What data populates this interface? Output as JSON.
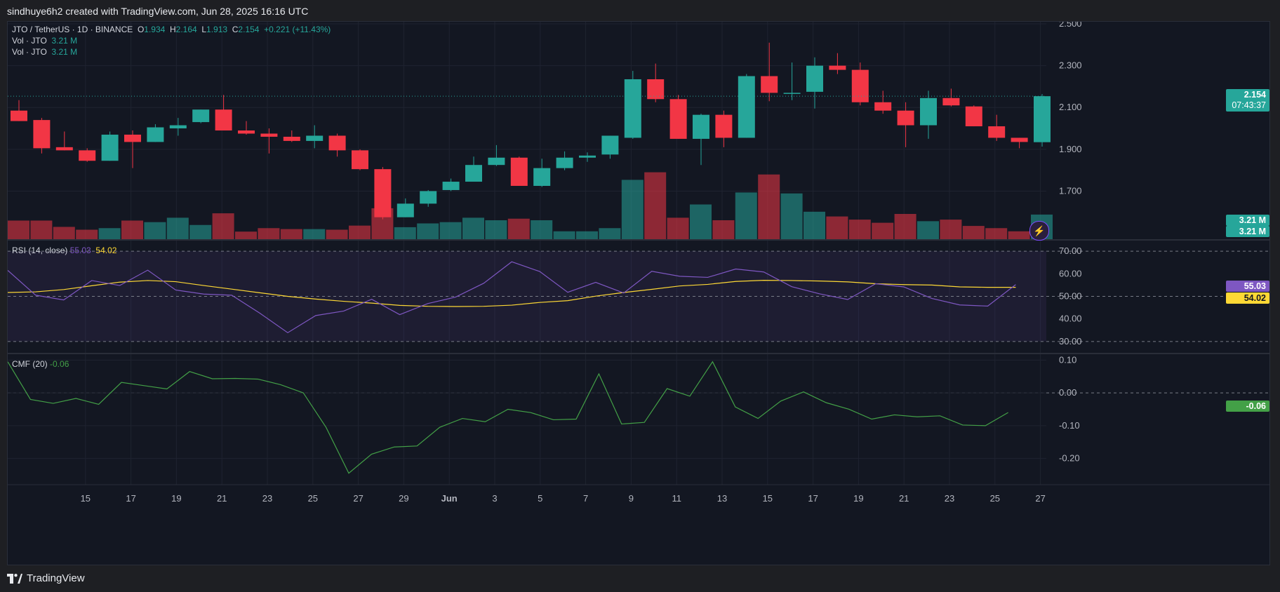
{
  "header": {
    "attribution": "sindhuye6h2 created with TradingView.com, Jun 28, 2025 16:16 UTC"
  },
  "footer": {
    "brand": "TradingView"
  },
  "legend": {
    "symbol": "JTO / TetherUS · 1D · BINANCE",
    "o_label": "O",
    "o": "1.934",
    "h_label": "H",
    "h": "2.164",
    "l_label": "L",
    "l": "1.913",
    "c_label": "C",
    "c": "2.154",
    "change": "+0.221 (+11.43%)",
    "vol1_label": "Vol · JTO",
    "vol1": "3.21 M",
    "vol2_label": "Vol · JTO",
    "vol2": "3.21 M",
    "rsi_label": "RSI (14, close)",
    "rsi": "55.03",
    "rsi_ma": "54.02",
    "cmf_label": "CMF (20)",
    "cmf": "-0.06"
  },
  "price_labels": {
    "last_price": "2.154",
    "countdown": "07:43:37",
    "vol_a": "3.21 M",
    "vol_b": "3.21 M",
    "rsi": "55.03",
    "rsi_ma": "54.02",
    "cmf": "-0.06"
  },
  "colors": {
    "up": "#26a69a",
    "down": "#f23645",
    "rsi": "#7e57c2",
    "rsi_ma": "#fdd835",
    "cmf": "#43a047"
  },
  "chart_data": {
    "type": "candlestick",
    "title": "JTO / TetherUS · 1D · BINANCE",
    "price_axis": {
      "ticks": [
        "2.500",
        "2.300",
        "2.100",
        "1.900",
        "1.700"
      ],
      "range": [
        1.47,
        2.5
      ]
    },
    "x_ticks": [
      "15",
      "17",
      "19",
      "21",
      "23",
      "25",
      "27",
      "29",
      "Jun",
      "3",
      "5",
      "7",
      "9",
      "11",
      "13",
      "15",
      "17",
      "19",
      "21",
      "23",
      "25",
      "27"
    ],
    "candles": [
      {
        "o": 2.085,
        "h": 2.135,
        "l": 2.035,
        "c": 2.035
      },
      {
        "o": 2.04,
        "h": 2.05,
        "l": 1.88,
        "c": 1.905
      },
      {
        "o": 1.91,
        "h": 1.985,
        "l": 1.895,
        "c": 1.895
      },
      {
        "o": 1.895,
        "h": 1.905,
        "l": 1.84,
        "c": 1.845
      },
      {
        "o": 1.845,
        "h": 1.985,
        "l": 1.845,
        "c": 1.97
      },
      {
        "o": 1.97,
        "h": 1.99,
        "l": 1.81,
        "c": 1.935
      },
      {
        "o": 1.935,
        "h": 2.02,
        "l": 1.935,
        "c": 2.005
      },
      {
        "o": 2.0,
        "h": 2.05,
        "l": 1.965,
        "c": 2.015
      },
      {
        "o": 2.03,
        "h": 2.09,
        "l": 2.025,
        "c": 2.09
      },
      {
        "o": 2.09,
        "h": 2.16,
        "l": 1.99,
        "c": 1.99
      },
      {
        "o": 1.99,
        "h": 2.035,
        "l": 1.97,
        "c": 1.975
      },
      {
        "o": 1.975,
        "h": 2.0,
        "l": 1.88,
        "c": 1.96
      },
      {
        "o": 1.96,
        "h": 1.99,
        "l": 1.935,
        "c": 1.94
      },
      {
        "o": 1.94,
        "h": 2.015,
        "l": 1.905,
        "c": 1.965
      },
      {
        "o": 1.965,
        "h": 1.975,
        "l": 1.865,
        "c": 1.895
      },
      {
        "o": 1.895,
        "h": 1.9,
        "l": 1.8,
        "c": 1.805
      },
      {
        "o": 1.805,
        "h": 1.815,
        "l": 1.565,
        "c": 1.575
      },
      {
        "o": 1.575,
        "h": 1.665,
        "l": 1.575,
        "c": 1.64
      },
      {
        "o": 1.64,
        "h": 1.705,
        "l": 1.625,
        "c": 1.7
      },
      {
        "o": 1.705,
        "h": 1.76,
        "l": 1.7,
        "c": 1.745
      },
      {
        "o": 1.745,
        "h": 1.865,
        "l": 1.745,
        "c": 1.825
      },
      {
        "o": 1.825,
        "h": 1.92,
        "l": 1.82,
        "c": 1.86
      },
      {
        "o": 1.86,
        "h": 1.865,
        "l": 1.725,
        "c": 1.725
      },
      {
        "o": 1.725,
        "h": 1.855,
        "l": 1.72,
        "c": 1.81
      },
      {
        "o": 1.81,
        "h": 1.89,
        "l": 1.8,
        "c": 1.86
      },
      {
        "o": 1.86,
        "h": 1.885,
        "l": 1.84,
        "c": 1.87
      },
      {
        "o": 1.875,
        "h": 1.965,
        "l": 1.855,
        "c": 1.965
      },
      {
        "o": 1.955,
        "h": 2.275,
        "l": 1.95,
        "c": 2.235
      },
      {
        "o": 2.235,
        "h": 2.31,
        "l": 2.125,
        "c": 2.14
      },
      {
        "o": 2.14,
        "h": 2.16,
        "l": 1.95,
        "c": 1.95
      },
      {
        "o": 1.95,
        "h": 2.07,
        "l": 1.825,
        "c": 2.065
      },
      {
        "o": 2.065,
        "h": 2.085,
        "l": 1.91,
        "c": 1.955
      },
      {
        "o": 1.955,
        "h": 2.26,
        "l": 1.955,
        "c": 2.25
      },
      {
        "o": 2.25,
        "h": 2.41,
        "l": 2.13,
        "c": 2.17
      },
      {
        "o": 2.17,
        "h": 2.315,
        "l": 2.135,
        "c": 2.17
      },
      {
        "o": 2.175,
        "h": 2.34,
        "l": 2.095,
        "c": 2.3
      },
      {
        "o": 2.3,
        "h": 2.36,
        "l": 2.26,
        "c": 2.28
      },
      {
        "o": 2.28,
        "h": 2.315,
        "l": 2.11,
        "c": 2.125
      },
      {
        "o": 2.125,
        "h": 2.18,
        "l": 2.07,
        "c": 2.085
      },
      {
        "o": 2.085,
        "h": 2.125,
        "l": 1.91,
        "c": 2.015
      },
      {
        "o": 2.015,
        "h": 2.18,
        "l": 1.95,
        "c": 2.145
      },
      {
        "o": 2.145,
        "h": 2.19,
        "l": 2.105,
        "c": 2.11
      },
      {
        "o": 2.105,
        "h": 2.11,
        "l": 2.01,
        "c": 2.01
      },
      {
        "o": 2.01,
        "h": 2.065,
        "l": 1.94,
        "c": 1.955
      },
      {
        "o": 1.955,
        "h": 1.955,
        "l": 1.905,
        "c": 1.935
      },
      {
        "o": 1.934,
        "h": 2.164,
        "l": 1.913,
        "c": 2.154
      }
    ],
    "volume": [
      0.59,
      0.59,
      0.39,
      0.3,
      0.35,
      0.59,
      0.54,
      0.68,
      0.45,
      0.82,
      0.24,
      0.35,
      0.32,
      0.32,
      0.3,
      0.43,
      0.98,
      0.38,
      0.5,
      0.54,
      0.68,
      0.6,
      0.65,
      0.6,
      0.25,
      0.25,
      0.35,
      1.88,
      2.12,
      0.68,
      1.1,
      0.6,
      1.48,
      2.05,
      1.45,
      0.87,
      0.72,
      0.62,
      0.52,
      0.8,
      0.57,
      0.62,
      0.42,
      0.35,
      0.25,
      0.78
    ],
    "rsi_series": {
      "name": "RSI (14, close)",
      "range": [
        25,
        75
      ],
      "ticks": [
        "70.00",
        "60.00",
        "50.00",
        "40.00",
        "30.00"
      ],
      "rsi": [
        61.5,
        50.5,
        48.4,
        57.0,
        54.8,
        61.6,
        52.8,
        51.0,
        50.5,
        42.6,
        33.9,
        41.5,
        43.5,
        48.7,
        41.9,
        46.8,
        49.7,
        55.8,
        65.3,
        61.0,
        51.8,
        56.2,
        51.5,
        61.1,
        58.9,
        58.4,
        62.1,
        60.8,
        54.3,
        51.1,
        48.6,
        55.6,
        54.2,
        49.1,
        46.2,
        45.7,
        55.2
      ],
      "ma": [
        51.7,
        52.0,
        53.0,
        54.7,
        56.3,
        57.0,
        56.5,
        54.8,
        53.2,
        51.6,
        50.0,
        48.8,
        47.8,
        47.0,
        46.0,
        45.6,
        45.5,
        45.6,
        46.1,
        47.3,
        48.1,
        50.1,
        51.7,
        53.1,
        54.6,
        55.3,
        56.6,
        57.1,
        57.0,
        56.8,
        56.4,
        55.6,
        55.2,
        55.0,
        54.2,
        54.0,
        54.0
      ]
    },
    "cmf_series": {
      "name": "CMF (20)",
      "range": [
        -0.28,
        0.12
      ],
      "ticks": [
        "0.10",
        "0.00",
        "-0.10",
        "-0.20"
      ],
      "cmf": [
        0.095,
        -0.02,
        -0.032,
        -0.017,
        -0.035,
        0.032,
        0.022,
        0.012,
        0.065,
        0.043,
        0.044,
        0.042,
        0.025,
        0.0,
        -0.105,
        -0.245,
        -0.187,
        -0.165,
        -0.162,
        -0.105,
        -0.078,
        -0.088,
        -0.05,
        -0.06,
        -0.082,
        -0.08,
        0.058,
        -0.095,
        -0.09,
        0.013,
        -0.01,
        0.095,
        -0.043,
        -0.078,
        -0.025,
        0.003,
        -0.03,
        -0.05,
        -0.08,
        -0.067,
        -0.073,
        -0.07,
        -0.098,
        -0.1,
        -0.06
      ]
    }
  }
}
